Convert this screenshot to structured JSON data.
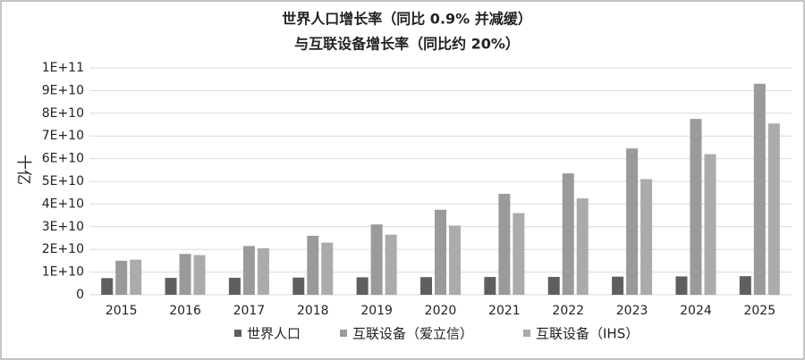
{
  "chart_data": {
    "type": "bar",
    "title": "世界人口增长率（同比 0.9% 并减缓）",
    "subtitle": "与互联设备增长率（同比约 20%）",
    "y_label": "十亿",
    "categories": [
      "2015",
      "2016",
      "2017",
      "2018",
      "2019",
      "2020",
      "2021",
      "2022",
      "2023",
      "2024",
      "2025"
    ],
    "series": [
      {
        "name": "世界人口",
        "color": "#5f5f5f",
        "values": [
          7350000000,
          7450000000,
          7500000000,
          7600000000,
          7700000000,
          7800000000,
          7850000000,
          7900000000,
          8000000000,
          8100000000,
          8200000000
        ]
      },
      {
        "name": "互联设备（爱立信）",
        "color": "#9a9a9a",
        "values": [
          15000000000,
          18000000000,
          21500000000,
          26000000000,
          31000000000,
          37500000000,
          44500000000,
          53500000000,
          64500000000,
          77500000000,
          93000000000
        ]
      },
      {
        "name": "互联设备（IHS）",
        "color": "#ababab",
        "values": [
          15500000000,
          17500000000,
          20500000000,
          23000000000,
          26500000000,
          30500000000,
          36000000000,
          42500000000,
          51000000000,
          62000000000,
          75500000000
        ]
      }
    ],
    "ylim": [
      0,
      100000000000
    ],
    "yticks": [
      0,
      {
        "value": 10000000000,
        "label": "1E+10"
      },
      {
        "value": 20000000000,
        "label": "2E+10"
      },
      {
        "value": 30000000000,
        "label": "3E+10"
      },
      {
        "value": 40000000000,
        "label": "4E+10"
      },
      {
        "value": 50000000000,
        "label": "5E+10"
      },
      {
        "value": 60000000000,
        "label": "6E+10"
      },
      {
        "value": 70000000000,
        "label": "7E+10"
      },
      {
        "value": 80000000000,
        "label": "8E+10"
      },
      {
        "value": 90000000000,
        "label": "9E+10"
      },
      {
        "value": 100000000000,
        "label": "1E+11"
      }
    ],
    "grid": true
  }
}
